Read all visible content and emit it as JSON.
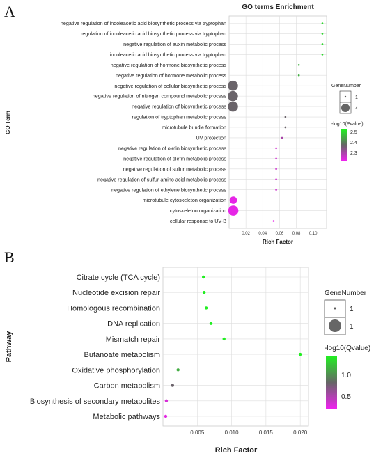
{
  "panel_a": {
    "letter": "A"
  },
  "panel_b": {
    "letter": "B"
  },
  "chart_data": [
    {
      "type": "scatter",
      "title": "GO terms Enrichment",
      "xlabel": "Rich Factor",
      "ylabel": "GO Term",
      "x_ticks": [
        "0.02",
        "0.04",
        "0.06",
        "0.08",
        "0.10"
      ],
      "xlim": [
        0.0,
        0.116
      ],
      "categories": [
        "negative regulation of indoleacetic acid biosynthetic process via tryptophan",
        "regulation of indoleacetic acid biosynthetic process via tryptophan",
        "negative regulation of auxin metabolic process",
        "indoleacetic acid biosynthetic process via tryptophan",
        "negative regulation of hormone biosynthetic process",
        "negative regulation of hormone metabolic process",
        "negative regulation of cellular biosynthetic process",
        "negative regulation of nitrogen compound metabolic process",
        "negative regulation of biosynthetic process",
        "regulation of tryptophan metabolic process",
        "microtubule bundle formation",
        "UV protection",
        "negative regulation of olefin biosynthetic process",
        "negative regulation of olefin metabolic process",
        "negative regulation of sulfur metabolic process",
        "negative regulation of sulfur amino acid metabolic process",
        "negative regulation of ethylene biosynthetic process",
        "microtubule cytoskeleton organization",
        "cytoskeleton organization",
        "cellular response to UV-B"
      ],
      "rich_factor": [
        0.111,
        0.111,
        0.111,
        0.111,
        0.083,
        0.083,
        0.0045,
        0.0045,
        0.0045,
        0.067,
        0.067,
        0.063,
        0.056,
        0.056,
        0.056,
        0.056,
        0.056,
        0.005,
        0.005,
        0.053
      ],
      "gene_number": [
        1,
        1,
        1,
        1,
        1,
        1,
        4,
        4,
        4,
        1,
        1,
        1,
        1,
        1,
        1,
        1,
        1,
        3,
        4,
        1
      ],
      "neg_log10_p": [
        2.55,
        2.55,
        2.55,
        2.55,
        2.5,
        2.5,
        2.4,
        2.4,
        2.4,
        2.4,
        2.4,
        2.32,
        2.27,
        2.27,
        2.27,
        2.27,
        2.27,
        2.24,
        2.24,
        2.24
      ],
      "size_legend": {
        "title": "GeneNumber",
        "labels": [
          "1",
          "4"
        ]
      },
      "color_legend": {
        "title": "-log10(Pvalue)",
        "labels": [
          "2.5",
          "2.4",
          "2.3"
        ],
        "range": [
          2.23,
          2.58
        ],
        "high_color": "#22ee22",
        "mid_color": "#666666",
        "low_color": "#ee22ee"
      },
      "grid": true
    },
    {
      "type": "scatter",
      "title": "Pathway Enrichment",
      "xlabel": "Rich Factor",
      "ylabel": "Pathway",
      "x_ticks": [
        "0.005",
        "0.010",
        "0.015",
        "0.020"
      ],
      "xlim": [
        0.0,
        0.0212
      ],
      "categories": [
        "Citrate cycle (TCA cycle)",
        "Nucleotide excision repair",
        "Homologous recombination",
        "DNA replication",
        "Mismatch repair",
        "Butanoate metabolism",
        "Oxidative phosphorylation",
        "Carbon metabolism",
        "Biosynthesis of secondary metabolites",
        "Metabolic pathways"
      ],
      "rich_factor": [
        0.0059,
        0.006,
        0.0063,
        0.007,
        0.0089,
        0.02,
        0.0022,
        0.0014,
        0.0005,
        0.0004
      ],
      "gene_number": [
        1,
        1,
        1,
        1,
        1,
        1,
        1,
        1,
        1,
        1
      ],
      "neg_log10_q": [
        1.5,
        1.5,
        1.5,
        1.5,
        1.5,
        1.5,
        1.2,
        0.85,
        0.35,
        0.3
      ],
      "size_legend": {
        "title": "GeneNumber",
        "labels": [
          "1",
          "1"
        ]
      },
      "color_legend": {
        "title": "-log10(Qvalue)",
        "labels": [
          "1.0",
          "0.5"
        ],
        "range": [
          0.25,
          1.5
        ],
        "high_color": "#22ee22",
        "mid_color": "#666666",
        "low_color": "#ee22ee"
      },
      "grid": true
    }
  ]
}
